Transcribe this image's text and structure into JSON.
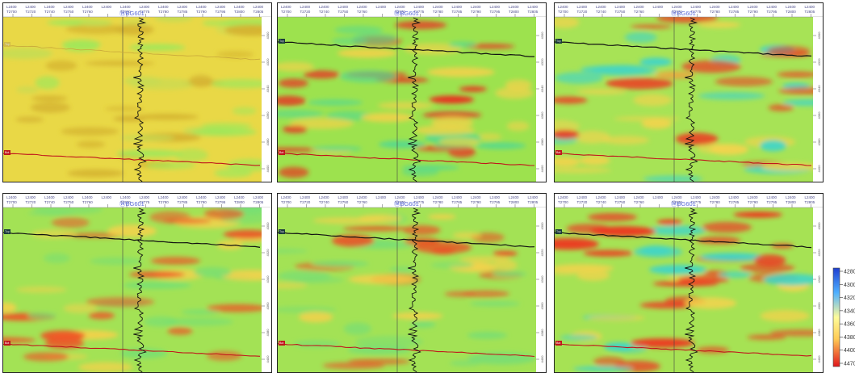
{
  "well_name": "BG601",
  "horizon_top_label": "Top",
  "horizon_bottom_label": "Bot",
  "inline_labels": [
    "L2400",
    "L2400",
    "L2400",
    "L2400",
    "L2400",
    "L2400",
    "L2400",
    "L2400",
    "L2400",
    "L2400",
    "L2400",
    "L2400",
    "L2400",
    "L2400"
  ],
  "trace_labels": [
    "T2700",
    "T2720",
    "T2740",
    "T2750",
    "T2760",
    "",
    "T2770",
    "T2775",
    "T2780",
    "T2785",
    "T2790",
    "T2795",
    "T2800",
    "T2805"
  ],
  "depth_labels": [
    "4300",
    "4320",
    "4340",
    "4360",
    "4380",
    "4400"
  ],
  "colorbar": {
    "ticks": [
      "4280",
      "4300",
      "4320",
      "4340",
      "4360",
      "4380",
      "4400",
      "4470"
    ],
    "colors": {
      "low": "#1f3fd0",
      "mid_low": "#4fb0ff",
      "mid": "#fefc9a",
      "mid_high": "#ffcb55",
      "high": "#e0161c"
    }
  },
  "panels": [
    {
      "name": "panel-1",
      "background": "#e9d846",
      "blob_colors": [
        "#9ee85a",
        "#d4b230",
        "#c7dc53"
      ]
    },
    {
      "name": "panel-2",
      "background": "#9de24e",
      "blob_colors": [
        "#f2d24a",
        "#ea2c20",
        "#56d98e"
      ]
    },
    {
      "name": "panel-3",
      "background": "#a7e356",
      "blob_colors": [
        "#3fd5c8",
        "#ef3420",
        "#f5d34c"
      ]
    },
    {
      "name": "panel-4",
      "background": "#a3e255",
      "blob_colors": [
        "#f4d14b",
        "#ef5025",
        "#76df74"
      ]
    },
    {
      "name": "panel-5",
      "background": "#a3e255",
      "blob_colors": [
        "#f4d14b",
        "#ee4a23",
        "#7ade73"
      ]
    },
    {
      "name": "panel-6",
      "background": "#a6e254",
      "blob_colors": [
        "#3fd5c8",
        "#ef3420",
        "#f5d34c"
      ]
    }
  ]
}
